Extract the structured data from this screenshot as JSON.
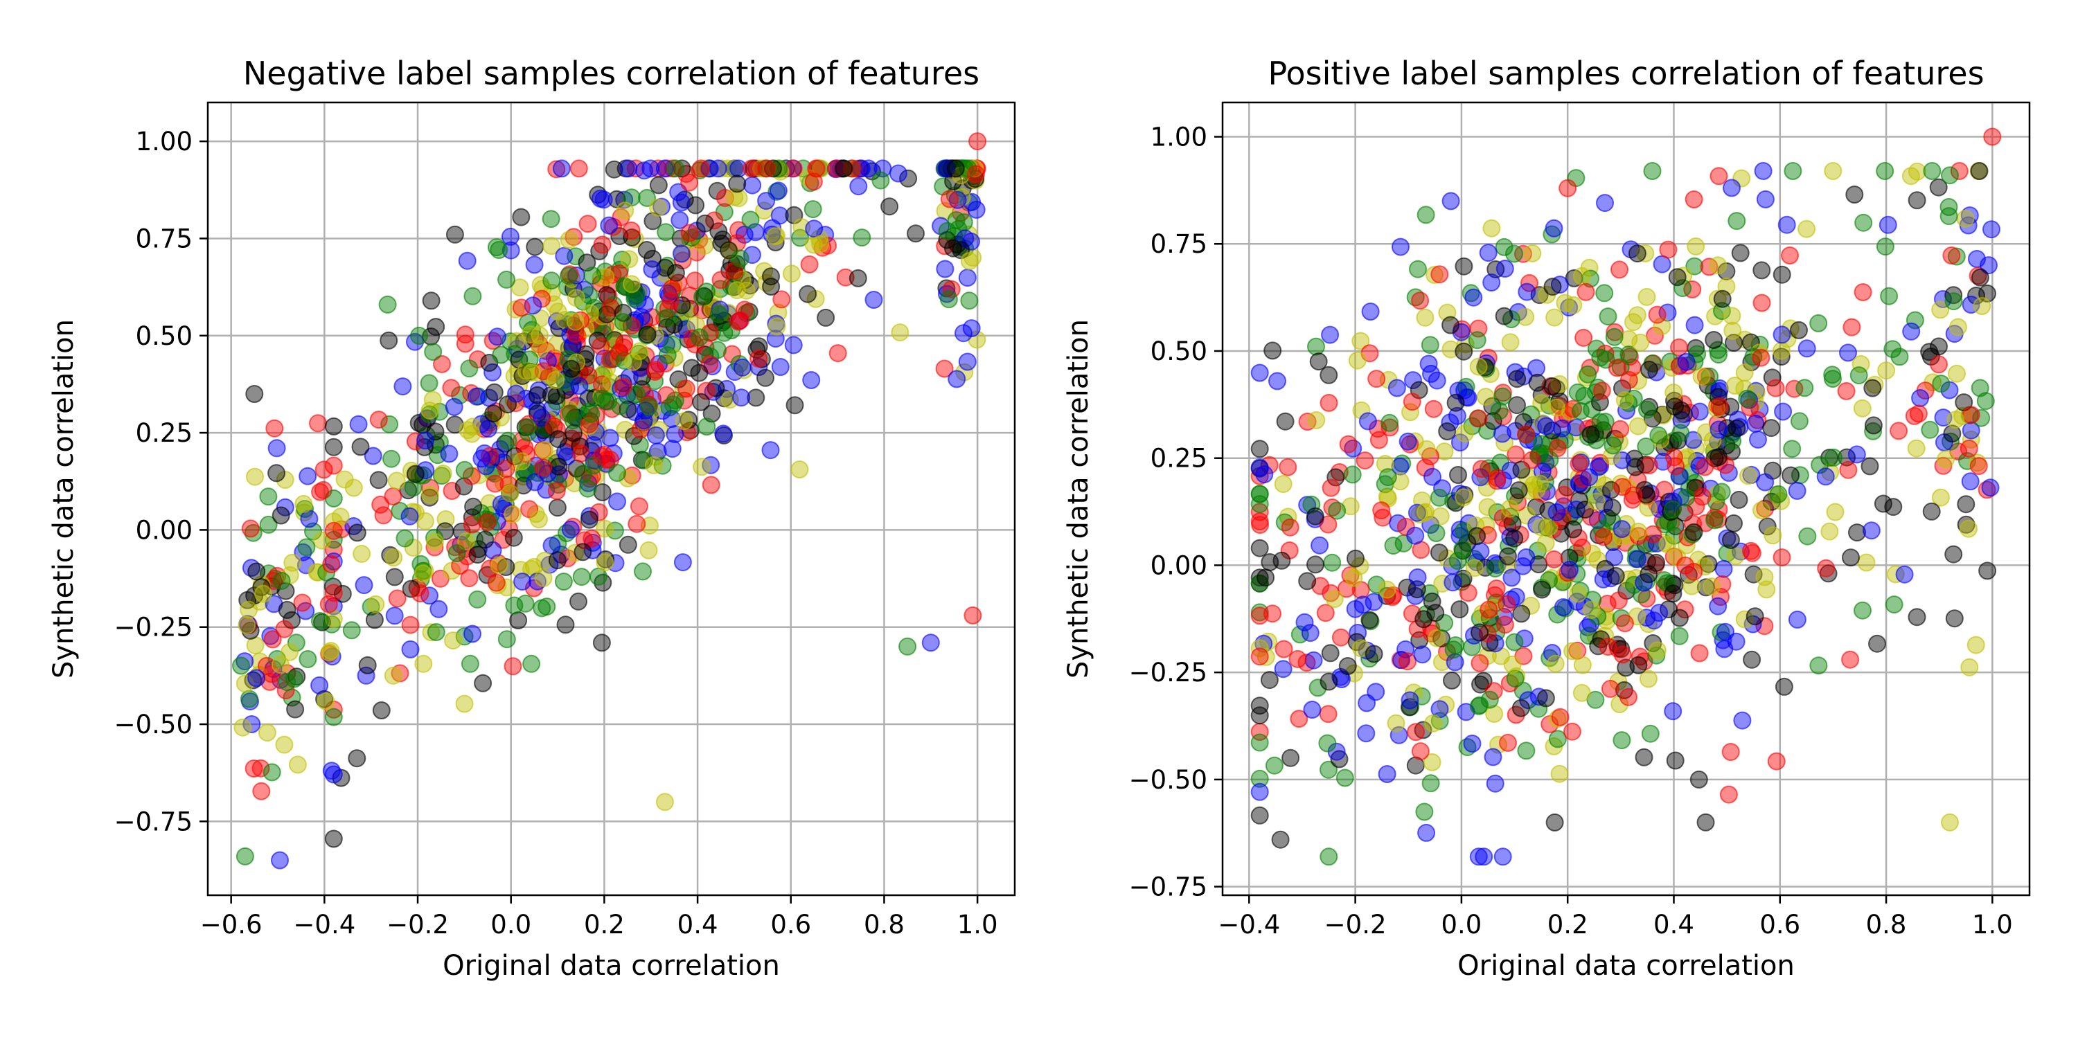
{
  "figure": {
    "marker_alpha": 0.45,
    "series_colors": [
      "#0000ff",
      "#ff0000",
      "#008000",
      "#000000",
      "#bfbf00"
    ],
    "points_per_series": 230
  },
  "chart_data": [
    {
      "type": "scatter",
      "title": "Negative label samples correlation of features",
      "xlabel": "Original data correlation",
      "ylabel": "Synthetic data correlation",
      "xlim": [
        -0.65,
        1.08
      ],
      "ylim": [
        -0.94,
        1.1
      ],
      "xticks": [
        -0.6,
        -0.4,
        -0.2,
        0.0,
        0.2,
        0.4,
        0.6,
        0.8,
        1.0
      ],
      "xtick_labels": [
        "−0.6",
        "−0.4",
        "−0.2",
        "0.0",
        "0.2",
        "0.4",
        "0.6",
        "0.8",
        "1.0"
      ],
      "yticks": [
        -0.75,
        -0.5,
        -0.25,
        0.0,
        0.25,
        0.5,
        0.75,
        1.0
      ],
      "ytick_labels": [
        "−0.75",
        "−0.50",
        "−0.25",
        "0.00",
        "0.25",
        "0.50",
        "0.75",
        "1.00"
      ],
      "grid": true,
      "legend": "none",
      "x_range_of_points": [
        -0.58,
        1.0
      ],
      "trend": "positive, roughly 0.25 + 1.0 * x, clipped at 0.9",
      "anchor_points": [
        [
          1.0,
          1.0
        ],
        [
          -0.57,
          -0.84
        ],
        [
          -0.55,
          0.35
        ],
        [
          0.33,
          -0.7
        ],
        [
          0.9,
          -0.29
        ],
        [
          0.99,
          -0.22
        ],
        [
          0.85,
          -0.3
        ],
        [
          -0.12,
          0.76
        ]
      ],
      "series_colors": [
        "#0000ff",
        "#ff0000",
        "#008000",
        "#000000",
        "#bfbf00"
      ]
    },
    {
      "type": "scatter",
      "title": "Positive label samples correlation of features",
      "xlabel": "Original data correlation",
      "ylabel": "Synthetic data correlation",
      "xlim": [
        -0.45,
        1.07
      ],
      "ylim": [
        -0.77,
        1.08
      ],
      "xticks": [
        -0.4,
        -0.2,
        0.0,
        0.2,
        0.4,
        0.6,
        0.8,
        1.0
      ],
      "xtick_labels": [
        "−0.4",
        "−0.2",
        "0.0",
        "0.2",
        "0.4",
        "0.6",
        "0.8",
        "1.0"
      ],
      "yticks": [
        -0.75,
        -0.5,
        -0.25,
        0.0,
        0.25,
        0.5,
        0.75,
        1.0
      ],
      "ytick_labels": [
        "−0.75",
        "−0.50",
        "−0.25",
        "0.00",
        "0.25",
        "0.50",
        "0.75",
        "1.00"
      ],
      "grid": true,
      "legend": "none",
      "x_range_of_points": [
        -0.38,
        1.0
      ],
      "trend": "weak positive, roughly 0.1 + 0.4 * x",
      "anchor_points": [
        [
          1.0,
          1.0
        ],
        [
          -0.25,
          -0.68
        ],
        [
          0.46,
          -0.6
        ],
        [
          0.92,
          -0.6
        ],
        [
          -0.02,
          0.85
        ],
        [
          0.2,
          0.88
        ],
        [
          0.92,
          0.91
        ]
      ],
      "series_colors": [
        "#0000ff",
        "#ff0000",
        "#008000",
        "#000000",
        "#bfbf00"
      ]
    }
  ]
}
